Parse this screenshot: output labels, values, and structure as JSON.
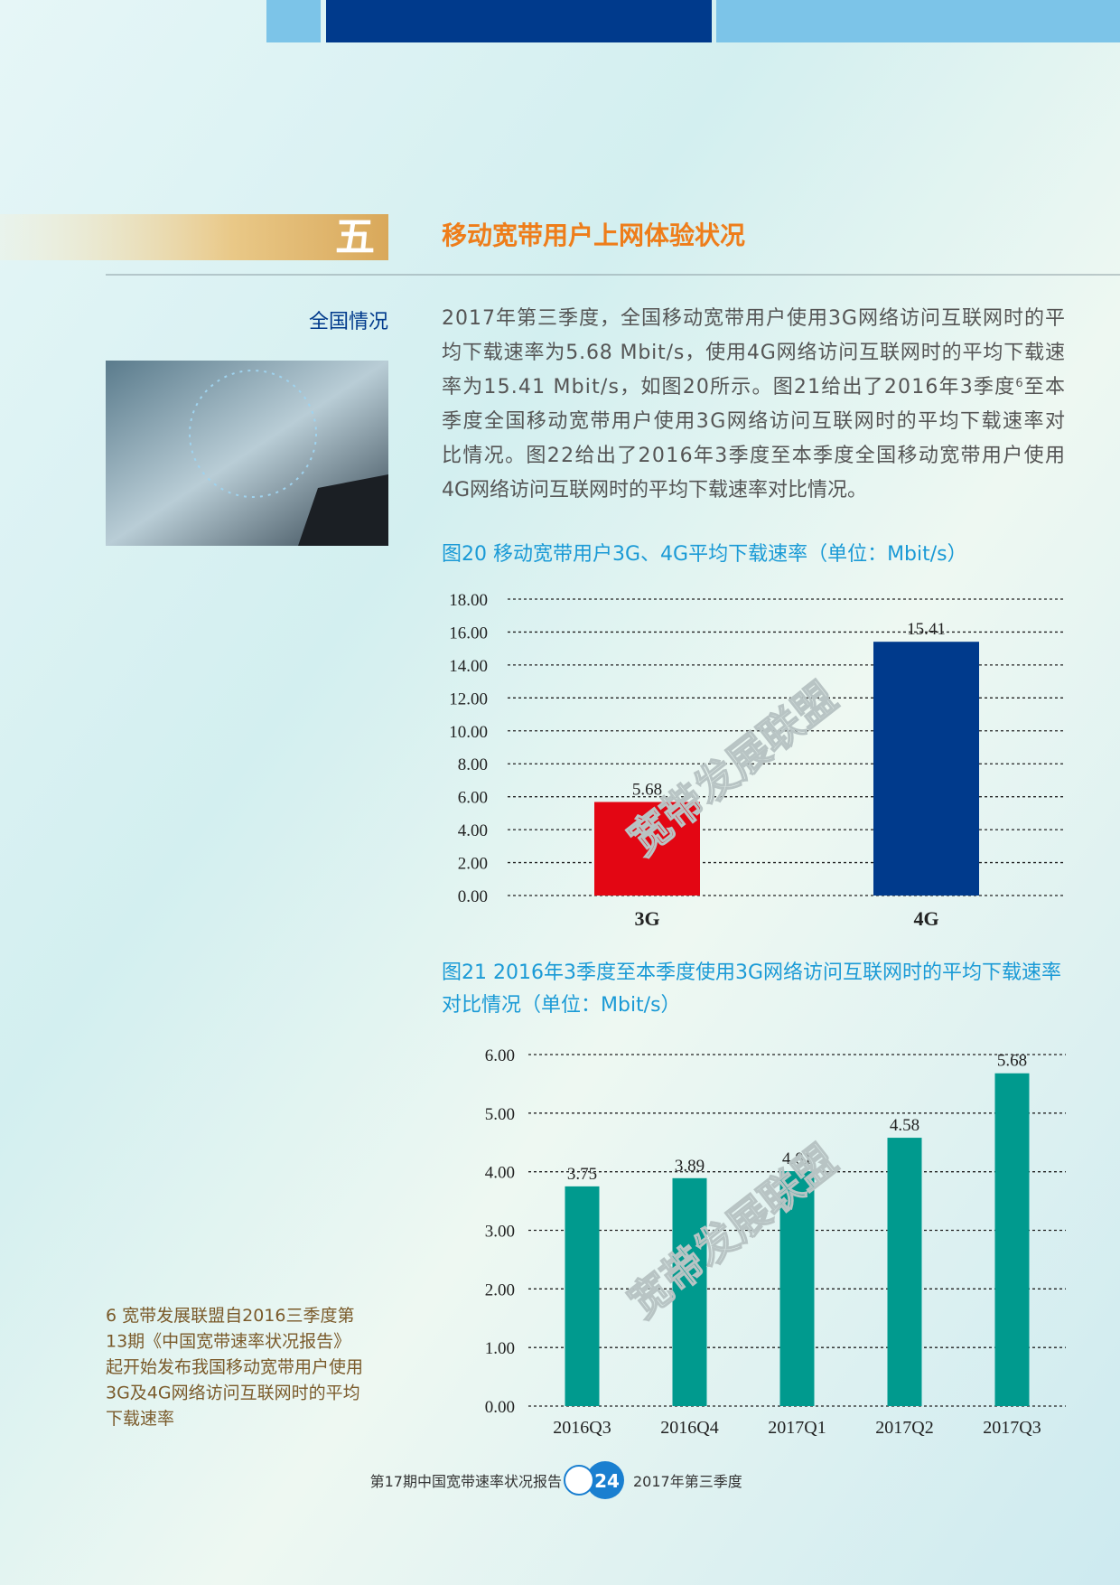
{
  "header": {
    "number": "五",
    "title": "移动宽带用户上网体验状况",
    "side_heading": "全国情况"
  },
  "body": {
    "lines": [
      [
        {
          "text": "2017年第三季度，全国移动宽带用户使用3G网络访问互联网时的平"
        }
      ],
      [
        {
          "text": "均下载速率为5.68 Mbit/s，使用4G网络访问互联网时的平均下载速"
        }
      ],
      [
        {
          "text": "率为15.41 Mbit/s，如图20所示。图21给出了2016年3季度"
        },
        {
          "text": "6",
          "sup": true
        },
        {
          "text": "至本"
        }
      ],
      [
        {
          "text": "季度全国移动宽带用户使用3G网络访问互联网时的平均下载速率对"
        }
      ],
      [
        {
          "text": "比情况。图22给出了2016年3季度至本季度全国移动宽带用户使用"
        }
      ],
      [
        {
          "text": "4G网络访问互联网时的平均下载速率对比情况。"
        }
      ]
    ]
  },
  "chart_data": [
    {
      "type": "bar",
      "title": [
        "图20 移动宽带用户3G、4G平均下载速率（单位：Mbit/s）"
      ],
      "categories": [
        "3G",
        "4G"
      ],
      "values": [
        5.68,
        15.41
      ],
      "colors": [
        "#e30613",
        "#003a8c"
      ],
      "ylim": [
        0,
        18
      ],
      "yticks": [
        {
          "value": 0,
          "label": "0.00"
        },
        {
          "value": 2,
          "label": "2.00"
        },
        {
          "value": 4,
          "label": "4.00"
        },
        {
          "value": 6,
          "label": "6.00"
        },
        {
          "value": 8,
          "label": "8.00"
        },
        {
          "value": 10,
          "label": "10.00"
        },
        {
          "value": 12,
          "label": "12.00"
        },
        {
          "value": 14,
          "label": "14.00"
        },
        {
          "value": 16,
          "label": "16.00"
        },
        {
          "value": 18,
          "label": "18.00"
        }
      ],
      "grid": true
    },
    {
      "type": "bar",
      "title": [
        "图21 2016年3季度至本季度使用3G网络访问互联网时的平均下载速率",
        "对比情况（单位：Mbit/s）"
      ],
      "categories": [
        "2016Q3",
        "2016Q4",
        "2017Q1",
        "2017Q2",
        "2017Q3"
      ],
      "values": [
        3.75,
        3.89,
        4.01,
        4.58,
        5.68
      ],
      "colors": [
        "#009a8e",
        "#009a8e",
        "#009a8e",
        "#009a8e",
        "#009a8e"
      ],
      "ylim": [
        0,
        6
      ],
      "yticks": [
        {
          "value": 0,
          "label": "0.00"
        },
        {
          "value": 1,
          "label": "1.00"
        },
        {
          "value": 2,
          "label": "2.00"
        },
        {
          "value": 3,
          "label": "3.00"
        },
        {
          "value": 4,
          "label": "4.00"
        },
        {
          "value": 5,
          "label": "5.00"
        },
        {
          "value": 6,
          "label": "6.00"
        }
      ],
      "grid": true
    }
  ],
  "footnote": {
    "lines": [
      "6 宽带发展联盟自2016三季度第",
      "13期《中国宽带速率状况报告》",
      "起开始发布我国移动宽带用户使用",
      "3G及4G网络访问互联网时的平均",
      "下载速率"
    ]
  },
  "watermark": "宽带发展联盟",
  "footer": {
    "left": "第17期中国宽带速率状况报告",
    "page": "24",
    "right": "2017年第三季度"
  }
}
